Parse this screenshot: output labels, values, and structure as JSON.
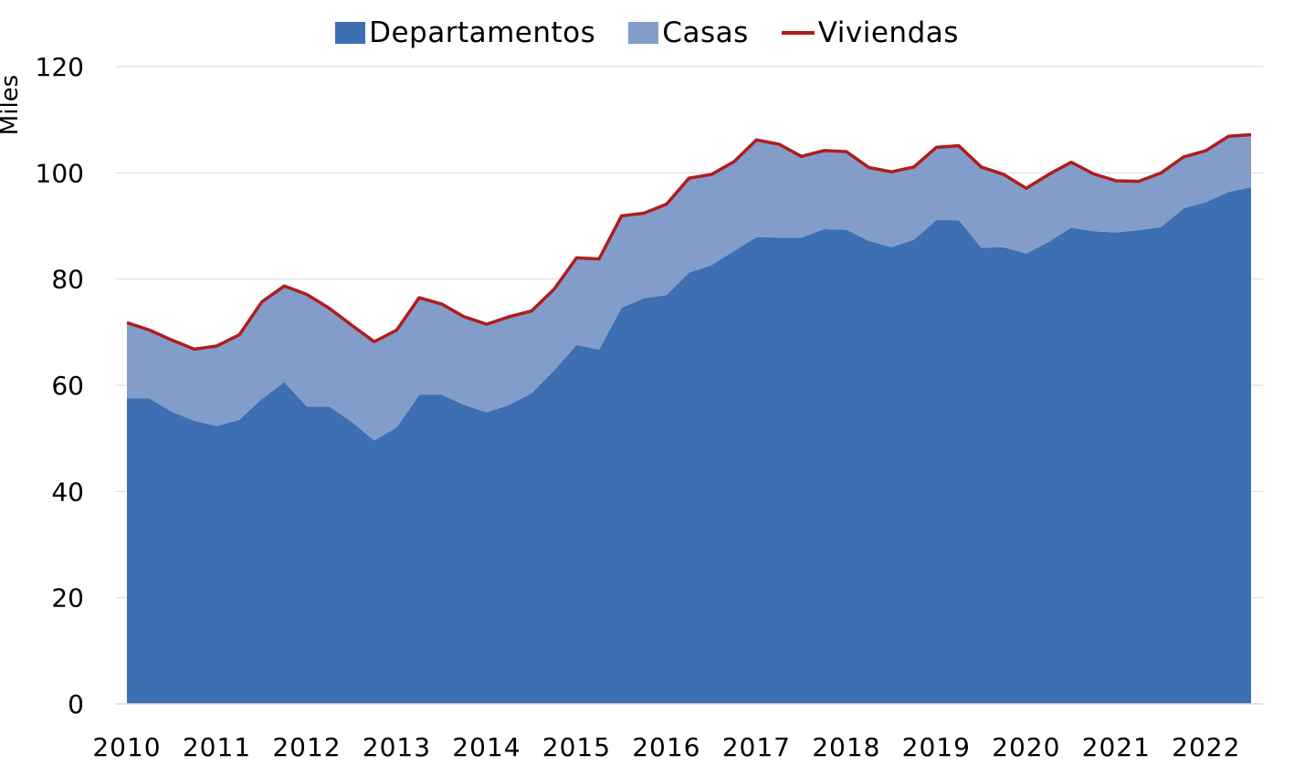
{
  "chart_data": {
    "type": "area",
    "title": "",
    "ylabel": "Miles",
    "xlabel": "",
    "ylim": [
      0,
      120
    ],
    "yticks": [
      0,
      20,
      40,
      60,
      80,
      100,
      120
    ],
    "x_tick_labels": [
      "2010",
      "2011",
      "2012",
      "2013",
      "2014",
      "2015",
      "2016",
      "2017",
      "2018",
      "2019",
      "2020",
      "2021",
      "2022"
    ],
    "stacked": true,
    "series": [
      {
        "name": "Departamentos",
        "type": "area",
        "color": "#3d6fb2",
        "values": [
          57.5,
          57.5,
          55.0,
          53.3,
          52.3,
          53.5,
          57.4,
          60.6,
          56.0,
          56.0,
          53.1,
          49.6,
          52.1,
          58.2,
          58.2,
          56.3,
          54.9,
          56.3,
          58.5,
          62.8,
          67.6,
          66.7,
          74.6,
          76.4,
          77.0,
          81.2,
          82.6,
          85.3,
          87.9,
          87.8,
          87.8,
          89.4,
          89.3,
          87.2,
          86.0,
          87.4,
          91.1,
          91.1,
          85.9,
          86.0,
          84.8,
          87.0,
          89.7,
          89.0,
          88.8,
          89.2,
          89.8,
          93.3,
          94.5,
          96.4,
          97.3
        ]
      },
      {
        "name": "Casas",
        "type": "area",
        "color": "#829dc9",
        "values": [
          14.3,
          12.9,
          13.5,
          13.5,
          15.1,
          16.0,
          18.3,
          18.1,
          21.1,
          18.5,
          18.2,
          18.6,
          18.3,
          18.3,
          17.1,
          16.6,
          16.6,
          16.6,
          15.5,
          15.3,
          16.4,
          17.1,
          17.3,
          16.0,
          17.1,
          17.8,
          17.1,
          16.8,
          18.3,
          17.6,
          15.3,
          14.8,
          14.7,
          13.8,
          14.2,
          13.7,
          13.7,
          14.0,
          15.2,
          13.7,
          12.3,
          12.7,
          12.3,
          10.8,
          9.7,
          9.2,
          10.2,
          9.7,
          9.7,
          10.5,
          9.9
        ]
      },
      {
        "name": "Viviendas",
        "type": "line",
        "color": "#b01c1c",
        "values": [
          71.8,
          70.4,
          68.5,
          66.8,
          67.4,
          69.5,
          75.7,
          78.7,
          77.1,
          74.5,
          71.3,
          68.2,
          70.4,
          76.5,
          75.3,
          72.9,
          71.5,
          72.9,
          74.0,
          78.1,
          84.0,
          83.8,
          91.9,
          92.4,
          94.1,
          99.0,
          99.7,
          102.1,
          106.2,
          105.4,
          103.1,
          104.2,
          104.0,
          101.0,
          100.2,
          101.1,
          104.8,
          105.1,
          101.1,
          99.7,
          97.1,
          99.7,
          102.0,
          99.8,
          98.5,
          98.4,
          100.0,
          103.0,
          104.2,
          106.9,
          107.2
        ]
      }
    ]
  },
  "ui": {
    "axis_color": "#d9d9d9",
    "grid_color": "#d9d9d9"
  }
}
